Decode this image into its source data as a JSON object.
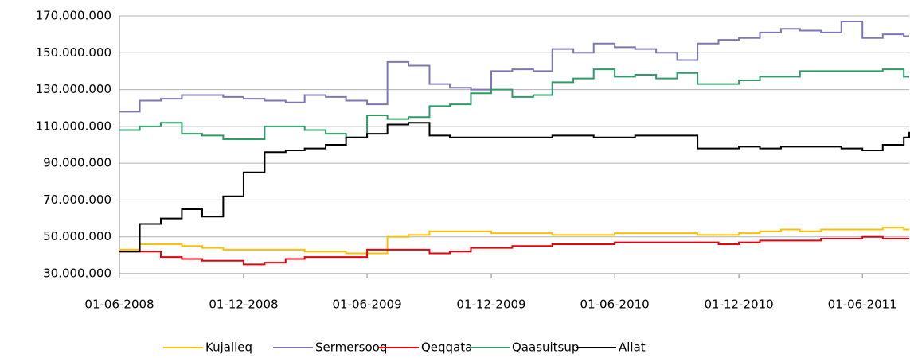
{
  "chart_data": {
    "type": "line",
    "step": true,
    "grid": true,
    "legend": "bottom",
    "x": [
      "01-06-2008",
      "01-07-2008",
      "01-08-2008",
      "01-09-2008",
      "01-10-2008",
      "01-11-2008",
      "01-12-2008",
      "01-01-2009",
      "01-02-2009",
      "01-03-2009",
      "01-04-2009",
      "01-05-2009",
      "01-06-2009",
      "01-07-2009",
      "01-08-2009",
      "01-09-2009",
      "01-10-2009",
      "01-11-2009",
      "01-12-2009",
      "01-01-2010",
      "01-02-2010",
      "01-03-2010",
      "01-04-2010",
      "01-05-2010",
      "01-06-2010",
      "01-07-2010",
      "01-08-2010",
      "01-09-2010",
      "01-10-2010",
      "01-11-2010",
      "01-12-2010",
      "01-01-2011",
      "01-02-2011",
      "01-03-2011",
      "01-04-2011",
      "01-05-2011",
      "01-06-2011",
      "01-07-2011",
      "01-08-2011",
      "09-08-2011"
    ],
    "xlim": [
      "01-06-2008",
      "09-08-2011"
    ],
    "xticks": [
      "01-06-2008",
      "01-12-2008",
      "01-06-2009",
      "01-12-2009",
      "01-06-2010",
      "01-12-2010",
      "01-06-2011"
    ],
    "ylim": [
      30000000,
      170000000
    ],
    "yticks": [
      {
        "value": 30000000,
        "label": "30.000.000"
      },
      {
        "value": 50000000,
        "label": "50.000.000"
      },
      {
        "value": 70000000,
        "label": "70.000.000"
      },
      {
        "value": 90000000,
        "label": "90.000.000"
      },
      {
        "value": 110000000,
        "label": "110.000.000"
      },
      {
        "value": 130000000,
        "label": "130.000.000"
      },
      {
        "value": 150000000,
        "label": "150.000.000"
      },
      {
        "value": 170000000,
        "label": "170.000.000"
      }
    ],
    "series": [
      {
        "name": "Kujalleq",
        "color": "#ffc000",
        "values": [
          43000000,
          46000000,
          46000000,
          45000000,
          44000000,
          43000000,
          43000000,
          43000000,
          43000000,
          42000000,
          42000000,
          41000000,
          41000000,
          50000000,
          51000000,
          53000000,
          53000000,
          53000000,
          52000000,
          52000000,
          52000000,
          51000000,
          51000000,
          51000000,
          52000000,
          52000000,
          52000000,
          52000000,
          51000000,
          51000000,
          52000000,
          53000000,
          54000000,
          53000000,
          54000000,
          54000000,
          54000000,
          55000000,
          54000000,
          54000000
        ]
      },
      {
        "name": "Sermersooq",
        "color": "#7b78b4",
        "values": [
          118000000,
          124000000,
          125000000,
          127000000,
          127000000,
          126000000,
          125000000,
          124000000,
          123000000,
          127000000,
          126000000,
          124000000,
          122000000,
          145000000,
          143000000,
          133000000,
          131000000,
          130000000,
          140000000,
          141000000,
          140000000,
          152000000,
          150000000,
          155000000,
          153000000,
          152000000,
          150000000,
          146000000,
          155000000,
          157000000,
          158000000,
          161000000,
          163000000,
          162000000,
          161000000,
          167000000,
          158000000,
          160000000,
          159000000,
          159000000
        ]
      },
      {
        "name": "Qeqqata",
        "color": "#e8000b",
        "values": [
          42000000,
          42000000,
          39000000,
          38000000,
          37000000,
          37000000,
          35000000,
          36000000,
          38000000,
          39000000,
          39000000,
          39000000,
          43000000,
          43000000,
          43000000,
          41000000,
          42000000,
          44000000,
          44000000,
          45000000,
          45000000,
          46000000,
          46000000,
          46000000,
          47000000,
          47000000,
          47000000,
          47000000,
          47000000,
          46000000,
          47000000,
          48000000,
          48000000,
          48000000,
          49000000,
          49000000,
          50000000,
          49000000,
          49000000,
          49000000
        ]
      },
      {
        "name": "Qaasuitsup",
        "color": "#2e9b68",
        "values": [
          108000000,
          110000000,
          112000000,
          106000000,
          105000000,
          103000000,
          103000000,
          110000000,
          110000000,
          108000000,
          106000000,
          104000000,
          116000000,
          114000000,
          115000000,
          121000000,
          122000000,
          128000000,
          130000000,
          126000000,
          127000000,
          134000000,
          136000000,
          141000000,
          137000000,
          138000000,
          136000000,
          139000000,
          133000000,
          133000000,
          135000000,
          137000000,
          137000000,
          140000000,
          140000000,
          140000000,
          140000000,
          141000000,
          137000000,
          137000000
        ]
      },
      {
        "name": "Allat",
        "color": "#000000",
        "values": [
          42000000,
          57000000,
          60000000,
          65000000,
          61000000,
          72000000,
          85000000,
          96000000,
          97000000,
          98000000,
          100000000,
          104000000,
          106000000,
          111000000,
          112000000,
          105000000,
          104000000,
          104000000,
          104000000,
          104000000,
          104000000,
          105000000,
          105000000,
          104000000,
          104000000,
          105000000,
          105000000,
          105000000,
          98000000,
          98000000,
          99000000,
          98000000,
          99000000,
          99000000,
          99000000,
          98000000,
          97000000,
          100000000,
          104000000,
          107000000
        ]
      }
    ]
  }
}
